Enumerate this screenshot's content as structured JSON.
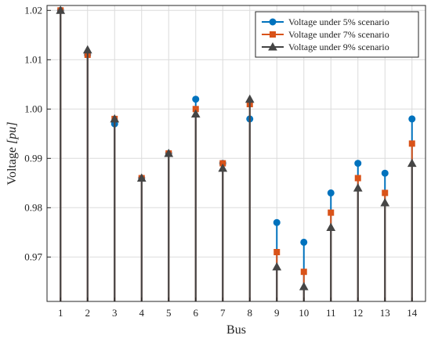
{
  "chart_data": {
    "type": "stem",
    "xlabel": "Bus",
    "ylabel_prefix": "Voltage ",
    "ylabel_unit": "[pu]",
    "xlim": [
      0.5,
      14.5
    ],
    "ylim": [
      0.961,
      1.021
    ],
    "x_ticks": [
      1,
      2,
      3,
      4,
      5,
      6,
      7,
      8,
      9,
      10,
      11,
      12,
      13,
      14
    ],
    "y_ticks": [
      0.97,
      0.98,
      0.99,
      1.0,
      1.01,
      1.02
    ],
    "y_tick_labels": [
      "0.97",
      "0.98",
      "0.99",
      "1.00",
      "1.01",
      "1.02"
    ],
    "grid": true,
    "legend_position": "top-right",
    "x": [
      1,
      2,
      3,
      4,
      5,
      6,
      7,
      8,
      9,
      10,
      11,
      12,
      13,
      14
    ],
    "series": [
      {
        "name": "Voltage under 5% scenario",
        "color": "#0072BD",
        "marker": "circle",
        "values": [
          1.02,
          1.011,
          0.997,
          0.986,
          0.991,
          1.002,
          0.989,
          0.998,
          0.977,
          0.973,
          0.983,
          0.989,
          0.987,
          0.998
        ]
      },
      {
        "name": "Voltage under 7% scenario",
        "color": "#D95319",
        "marker": "square",
        "values": [
          1.02,
          1.011,
          0.998,
          0.986,
          0.991,
          1.0,
          0.989,
          1.001,
          0.971,
          0.967,
          0.979,
          0.986,
          0.983,
          0.993
        ]
      },
      {
        "name": "Voltage under 9% scenario",
        "color": "#454545",
        "marker": "triangle",
        "values": [
          1.02,
          1.012,
          0.998,
          0.986,
          0.991,
          0.999,
          0.988,
          1.002,
          0.968,
          0.964,
          0.976,
          0.984,
          0.981,
          0.989
        ]
      }
    ]
  }
}
